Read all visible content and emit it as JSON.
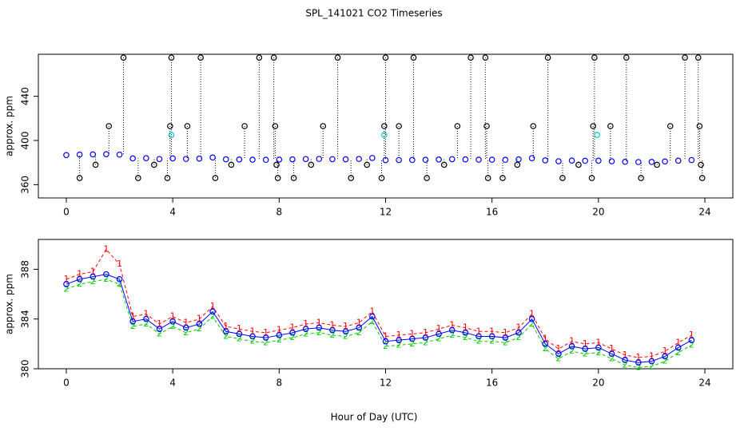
{
  "chart_data": [
    {
      "type": "scatter",
      "title": "SPL_141021  CO2 Timeseries",
      "y_label": "approx. ppm",
      "xlim": [
        -1.05,
        25.05
      ],
      "xticks": [
        0,
        4,
        8,
        12,
        16,
        20,
        24
      ],
      "ylim": [
        348,
        478
      ],
      "yticks": [
        360,
        400,
        440
      ],
      "x": [
        0,
        0.5,
        1,
        1.5,
        2,
        2.5,
        3,
        3.5,
        4,
        4.5,
        5,
        5.5,
        6,
        6.5,
        7,
        7.5,
        8,
        8.5,
        9,
        9.5,
        10,
        10.5,
        11,
        11.5,
        12,
        12.5,
        13,
        13.5,
        14,
        14.5,
        15,
        15.5,
        16,
        16.5,
        17,
        17.5,
        18,
        18.5,
        19,
        19.5,
        20,
        20.5,
        21,
        21.5,
        22,
        22.5,
        23,
        23.5
      ],
      "series": [
        {
          "color": "#000000",
          "marker": "circle",
          "drops": true,
          "x": [
            0.5,
            1.1,
            1.6,
            2.15,
            2.7,
            3.3,
            3.8,
            3.9,
            3.95,
            4.55,
            5.05,
            5.6,
            6.2,
            6.7,
            7.25,
            7.8,
            7.85,
            7.9,
            7.95,
            8.55,
            9.2,
            9.65,
            10.2,
            10.7,
            11.3,
            11.85,
            11.95,
            12.0,
            12.5,
            13.05,
            13.55,
            14.2,
            14.7,
            15.2,
            15.75,
            15.8,
            15.85,
            16.4,
            16.95,
            17.55,
            18.1,
            18.65,
            19.25,
            19.75,
            19.8,
            19.85,
            20.45,
            21.05,
            21.6,
            22.2,
            22.7,
            23.25,
            23.75,
            23.8,
            23.85,
            23.9
          ],
          "values": [
            366,
            378,
            413,
            475,
            366,
            378,
            366,
            413,
            475,
            413,
            475,
            366,
            378,
            413,
            475,
            475,
            413,
            378,
            366,
            366,
            378,
            413,
            475,
            366,
            378,
            366,
            413,
            475,
            413,
            475,
            366,
            378,
            413,
            475,
            475,
            413,
            366,
            366,
            378,
            413,
            475,
            366,
            378,
            366,
            413,
            475,
            413,
            475,
            366,
            378,
            413,
            475,
            475,
            413,
            378,
            366
          ]
        },
        {
          "color": "#0000ff",
          "marker": "circle",
          "values": [
            386.8,
            387.2,
            387.4,
            387.6,
            387.2,
            383.8,
            384.0,
            383.2,
            383.8,
            383.3,
            383.6,
            384.6,
            383.0,
            382.8,
            382.6,
            382.5,
            382.7,
            382.9,
            383.2,
            383.3,
            383.1,
            383.0,
            383.3,
            384.2,
            382.2,
            382.3,
            382.4,
            382.5,
            382.8,
            383.1,
            382.9,
            382.6,
            382.6,
            382.5,
            382.9,
            384.0,
            382.0,
            381.2,
            381.8,
            381.6,
            381.7,
            381.2,
            380.7,
            380.5,
            380.6,
            381.0,
            381.7,
            382.3
          ]
        },
        {
          "color": "#00cccc",
          "marker": "circle",
          "x": [
            3.95,
            11.95,
            19.95
          ],
          "values": [
            405,
            405,
            405
          ]
        }
      ]
    },
    {
      "type": "line",
      "y_label": "approx. ppm",
      "x_label": "Hour of Day (UTC)",
      "xlim": [
        -1.05,
        25.05
      ],
      "xticks": [
        0,
        4,
        8,
        12,
        16,
        20,
        24
      ],
      "ylim": [
        380,
        390.4
      ],
      "yticks": [
        380,
        384,
        388
      ],
      "x": [
        0,
        0.5,
        1,
        1.5,
        2,
        2.5,
        3,
        3.5,
        4,
        4.5,
        5,
        5.5,
        6,
        6.5,
        7,
        7.5,
        8,
        8.5,
        9,
        9.5,
        10,
        10.5,
        11,
        11.5,
        12,
        12.5,
        13,
        13.5,
        14,
        14.5,
        15,
        15.5,
        16,
        16.5,
        17,
        17.5,
        18,
        18.5,
        19,
        19.5,
        20,
        20.5,
        21,
        21.5,
        22,
        22.5,
        23,
        23.5
      ],
      "series": [
        {
          "color": "#ff0000",
          "marker": "1",
          "line": "dashed",
          "values": [
            387.2,
            387.6,
            387.8,
            389.6,
            388.4,
            384.2,
            384.4,
            383.6,
            384.2,
            383.7,
            384.0,
            385.0,
            383.4,
            383.2,
            383.0,
            382.9,
            383.1,
            383.3,
            383.6,
            383.7,
            383.5,
            383.4,
            383.7,
            384.6,
            382.6,
            382.7,
            382.8,
            382.9,
            383.2,
            383.5,
            383.3,
            383.0,
            383.0,
            382.9,
            383.3,
            384.4,
            382.4,
            381.6,
            382.2,
            382.0,
            382.1,
            381.6,
            381.1,
            380.9,
            381.0,
            381.4,
            382.1,
            382.7
          ]
        },
        {
          "color": "#00cc00",
          "marker": "2",
          "line": "dashed",
          "values": [
            386.4,
            386.8,
            387.0,
            387.2,
            386.8,
            383.4,
            383.6,
            382.8,
            383.4,
            382.9,
            383.2,
            384.2,
            382.6,
            382.4,
            382.2,
            382.1,
            382.3,
            382.5,
            382.8,
            382.9,
            382.7,
            382.6,
            382.9,
            383.8,
            381.8,
            381.9,
            382.0,
            382.1,
            382.4,
            382.7,
            382.5,
            382.2,
            382.2,
            382.1,
            382.5,
            383.6,
            381.6,
            380.8,
            381.4,
            381.2,
            381.3,
            380.8,
            380.3,
            380.1,
            380.2,
            380.6,
            381.3,
            381.9
          ]
        },
        {
          "color": "#0000ff",
          "marker": "circle",
          "line": "solid",
          "values": [
            386.8,
            387.2,
            387.4,
            387.6,
            387.2,
            383.8,
            384.0,
            383.2,
            383.8,
            383.3,
            383.6,
            384.6,
            383.0,
            382.8,
            382.6,
            382.5,
            382.7,
            382.9,
            383.2,
            383.3,
            383.1,
            383.0,
            383.3,
            384.2,
            382.2,
            382.3,
            382.4,
            382.5,
            382.8,
            383.1,
            382.9,
            382.6,
            382.6,
            382.5,
            382.9,
            384.0,
            382.0,
            381.2,
            381.8,
            381.6,
            381.7,
            381.2,
            380.7,
            380.5,
            380.6,
            381.0,
            381.7,
            382.3
          ]
        }
      ]
    }
  ]
}
